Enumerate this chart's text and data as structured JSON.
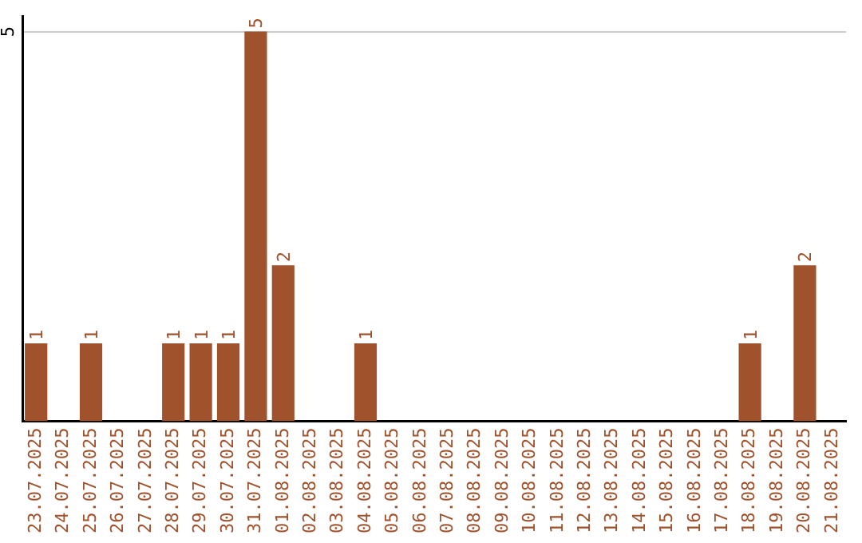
{
  "chart_data": {
    "type": "bar",
    "categories": [
      "23.07.2025",
      "24.07.2025",
      "25.07.2025",
      "26.07.2025",
      "27.07.2025",
      "28.07.2025",
      "29.07.2025",
      "30.07.2025",
      "31.07.2025",
      "01.08.2025",
      "02.08.2025",
      "03.08.2025",
      "04.08.2025",
      "05.08.2025",
      "06.08.2025",
      "07.08.2025",
      "08.08.2025",
      "09.08.2025",
      "10.08.2025",
      "11.08.2025",
      "12.08.2025",
      "13.08.2025",
      "14.08.2025",
      "15.08.2025",
      "16.08.2025",
      "17.08.2025",
      "18.08.2025",
      "19.08.2025",
      "20.08.2025",
      "21.08.2025"
    ],
    "values": [
      1,
      0,
      1,
      0,
      0,
      1,
      1,
      1,
      5,
      2,
      0,
      0,
      1,
      0,
      0,
      0,
      0,
      0,
      0,
      0,
      0,
      0,
      0,
      0,
      0,
      0,
      1,
      0,
      2,
      0
    ],
    "value_labels": [
      "1",
      null,
      "1",
      null,
      null,
      "1",
      "1",
      "1",
      "5",
      "2",
      null,
      null,
      "1",
      null,
      null,
      null,
      null,
      null,
      null,
      null,
      null,
      null,
      null,
      null,
      null,
      null,
      "1",
      null,
      "2",
      null
    ],
    "color": "#a0522d",
    "ylim": [
      0,
      5.2
    ],
    "yticks": [
      5
    ],
    "grid": "y",
    "legend": false
  }
}
